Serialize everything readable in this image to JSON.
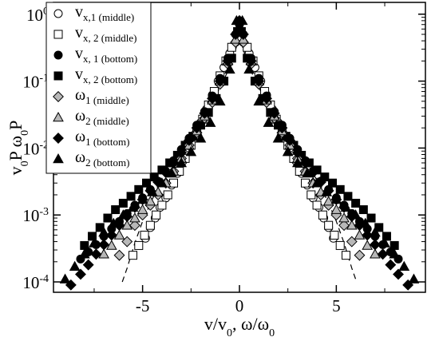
{
  "chart_data": {
    "type": "scatter",
    "yscale": "log",
    "xlim": [
      -9.6,
      9.6
    ],
    "ylim": [
      7e-05,
      1.5
    ],
    "x_ticks": [
      -5,
      0,
      5
    ],
    "x_tick_labels": [
      "-5",
      "0",
      "5"
    ],
    "y_ticks": [
      0.0001,
      0.001,
      0.01,
      0.1,
      1
    ],
    "y_tick_labels": [
      {
        "base": "10",
        "exp": "-4"
      },
      {
        "base": "10",
        "exp": "-3"
      },
      {
        "base": "10",
        "exp": "-2"
      },
      {
        "base": "10",
        "exp": "-1"
      },
      {
        "base": "10",
        "exp": "0"
      }
    ],
    "xlabel": {
      "parts": [
        {
          "text": "v/v",
          "sub": false
        },
        {
          "text": "0",
          "sub": true
        },
        {
          "text": ", ω/ω",
          "sub": false
        },
        {
          "text": "0",
          "sub": true
        }
      ]
    },
    "ylabel": {
      "parts": [
        {
          "text": "v",
          "sub": false
        },
        {
          "text": "0",
          "sub": true
        },
        {
          "text": "P    ω",
          "sub": false
        },
        {
          "text": "0",
          "sub": true
        },
        {
          "text": "P",
          "sub": false
        }
      ]
    },
    "legend_position": "top-left",
    "legend": [
      {
        "main": "v",
        "sub": "x,1 (middle)",
        "marker": "circle",
        "fill": "none"
      },
      {
        "main": "v",
        "sub": "x, 2 (middle)",
        "marker": "square",
        "fill": "none"
      },
      {
        "main": "v",
        "sub": "x, 1 (bottom)",
        "marker": "circle",
        "fill": "black"
      },
      {
        "main": "v",
        "sub": "x, 2 (bottom)",
        "marker": "square",
        "fill": "black"
      },
      {
        "main": "ω",
        "sub": "1 (middle)",
        "marker": "diamond",
        "fill": "gray"
      },
      {
        "main": "ω",
        "sub": "2 (middle)",
        "marker": "triangle",
        "fill": "gray"
      },
      {
        "main": "ω",
        "sub": "1 (bottom)",
        "marker": "diamond",
        "fill": "black"
      },
      {
        "main": "ω",
        "sub": "2 (bottom)",
        "marker": "triangle",
        "fill": "black"
      }
    ],
    "series": [
      {
        "marker": "circle",
        "fill": "none",
        "x": [
          -4.85,
          -4.6,
          -4.35,
          -4.1,
          -3.8,
          -3.5,
          -3.2,
          -2.9,
          -2.6,
          -2.3,
          -2.0,
          -1.7,
          -1.4,
          -1.1,
          -0.8,
          -0.5,
          -0.2,
          0.0,
          0.2,
          0.5,
          0.8,
          1.1,
          1.4,
          1.7,
          2.0,
          2.3,
          2.6,
          2.9,
          3.2,
          3.5,
          3.8,
          4.1,
          4.35,
          4.6,
          4.85
        ],
        "y": [
          0.00045,
          0.00065,
          0.0009,
          0.0013,
          0.0018,
          0.0028,
          0.0042,
          0.0065,
          0.01,
          0.015,
          0.024,
          0.038,
          0.062,
          0.1,
          0.16,
          0.26,
          0.38,
          0.42,
          0.38,
          0.26,
          0.16,
          0.1,
          0.062,
          0.038,
          0.024,
          0.015,
          0.01,
          0.0065,
          0.0042,
          0.0028,
          0.0018,
          0.0013,
          0.0009,
          0.00065,
          0.00045
        ]
      },
      {
        "marker": "square",
        "fill": "none",
        "x": [
          -5.5,
          -5.2,
          -4.9,
          -4.6,
          -4.3,
          -4.0,
          -3.7,
          -3.4,
          -3.1,
          -2.8,
          -2.5,
          -2.2,
          -1.9,
          -1.6,
          -1.3,
          -1.0,
          -0.7,
          -0.4,
          -0.1,
          0.1,
          0.4,
          0.7,
          1.0,
          1.3,
          1.6,
          1.9,
          2.2,
          2.5,
          2.8,
          3.1,
          3.4,
          3.7,
          4.0,
          4.3,
          4.6,
          4.9,
          5.2,
          5.5
        ],
        "y": [
          0.00025,
          0.00035,
          0.0005,
          0.0007,
          0.001,
          0.0014,
          0.002,
          0.003,
          0.0045,
          0.007,
          0.011,
          0.017,
          0.027,
          0.044,
          0.07,
          0.12,
          0.2,
          0.32,
          0.42,
          0.42,
          0.32,
          0.2,
          0.12,
          0.07,
          0.044,
          0.027,
          0.017,
          0.011,
          0.007,
          0.0045,
          0.003,
          0.002,
          0.0014,
          0.001,
          0.0007,
          0.0005,
          0.00035,
          0.00025
        ]
      },
      {
        "marker": "circle",
        "fill": "black",
        "x": [
          -8.2,
          -7.8,
          -7.4,
          -7.0,
          -6.6,
          -6.2,
          -5.8,
          -5.4,
          -5.0,
          -4.6,
          -4.2,
          -3.8,
          -3.4,
          -3.0,
          -2.6,
          -2.2,
          -1.8,
          -1.4,
          -1.0,
          -0.6,
          -0.2,
          0.0,
          0.2,
          0.6,
          1.0,
          1.4,
          1.8,
          2.2,
          2.6,
          3.0,
          3.4,
          3.8,
          4.2,
          4.6,
          5.0,
          5.4,
          5.8,
          6.2,
          6.6,
          7.0,
          7.4,
          7.8,
          8.2
        ],
        "y": [
          0.00022,
          0.00028,
          0.00036,
          0.00048,
          0.00062,
          0.0008,
          0.00105,
          0.0014,
          0.0018,
          0.0024,
          0.0032,
          0.0045,
          0.0065,
          0.0095,
          0.014,
          0.022,
          0.035,
          0.06,
          0.11,
          0.22,
          0.5,
          0.7,
          0.5,
          0.22,
          0.11,
          0.06,
          0.035,
          0.022,
          0.014,
          0.0095,
          0.0065,
          0.0045,
          0.0032,
          0.0024,
          0.0018,
          0.0014,
          0.00105,
          0.0008,
          0.00062,
          0.00048,
          0.00036,
          0.00028,
          0.00022
        ]
      },
      {
        "marker": "square",
        "fill": "black",
        "x": [
          -8.0,
          -7.6,
          -7.2,
          -6.8,
          -6.4,
          -6.0,
          -5.6,
          -5.2,
          -4.8,
          -4.4,
          -4.0,
          -3.6,
          -3.2,
          -2.8,
          -2.4,
          -2.0,
          -1.6,
          -1.2,
          -0.8,
          -0.4,
          -0.1,
          0.1,
          0.4,
          0.8,
          1.2,
          1.6,
          2.0,
          2.4,
          2.8,
          3.2,
          3.6,
          4.0,
          4.4,
          4.8,
          5.2,
          5.6,
          6.0,
          6.4,
          6.8,
          7.2,
          7.6,
          8.0
        ],
        "y": [
          0.00035,
          0.00048,
          0.00065,
          0.0009,
          0.0012,
          0.0015,
          0.0019,
          0.0024,
          0.003,
          0.0037,
          0.0047,
          0.006,
          0.0078,
          0.011,
          0.015,
          0.022,
          0.034,
          0.055,
          0.1,
          0.22,
          0.55,
          0.55,
          0.22,
          0.1,
          0.055,
          0.034,
          0.022,
          0.015,
          0.011,
          0.0078,
          0.006,
          0.0047,
          0.0037,
          0.003,
          0.0024,
          0.0019,
          0.0015,
          0.0012,
          0.0009,
          0.00065,
          0.00048,
          0.00035
        ]
      },
      {
        "marker": "diamond",
        "fill": "gray",
        "x": [
          -6.2,
          -5.8,
          -5.4,
          -5.0,
          -4.6,
          -4.2,
          -3.8,
          -3.4,
          -3.0,
          -2.6,
          -2.2,
          -1.8,
          -1.4,
          -1.0,
          -0.6,
          -0.2,
          0.2,
          0.6,
          1.0,
          1.4,
          1.8,
          2.2,
          2.6,
          3.0,
          3.4,
          3.8,
          4.2,
          4.6,
          5.0,
          5.4,
          5.8,
          6.2
        ],
        "y": [
          0.00025,
          0.0004,
          0.0007,
          0.001,
          0.0014,
          0.002,
          0.003,
          0.0045,
          0.007,
          0.011,
          0.017,
          0.028,
          0.048,
          0.09,
          0.18,
          0.38,
          0.38,
          0.18,
          0.09,
          0.048,
          0.028,
          0.017,
          0.011,
          0.007,
          0.0045,
          0.003,
          0.002,
          0.0014,
          0.001,
          0.0007,
          0.0004,
          0.00025
        ]
      },
      {
        "marker": "triangle",
        "fill": "gray",
        "x": [
          -7.0,
          -6.6,
          -6.2,
          -5.8,
          -5.4,
          -5.0,
          -4.6,
          -4.2,
          -3.8,
          -3.4,
          -3.0,
          -2.6,
          -2.2,
          -1.8,
          -1.4,
          -1.0,
          -0.6,
          -0.2,
          0.2,
          0.6,
          1.0,
          1.4,
          1.8,
          2.2,
          2.6,
          3.0,
          3.4,
          3.8,
          4.2,
          4.6,
          5.0,
          5.4,
          5.8,
          6.2,
          6.6,
          7.0
        ],
        "y": [
          0.00026,
          0.00035,
          0.0005,
          0.0007,
          0.0009,
          0.0012,
          0.0016,
          0.0022,
          0.003,
          0.0045,
          0.007,
          0.011,
          0.018,
          0.03,
          0.052,
          0.1,
          0.2,
          0.42,
          0.42,
          0.2,
          0.1,
          0.052,
          0.03,
          0.018,
          0.011,
          0.007,
          0.0045,
          0.003,
          0.0022,
          0.0016,
          0.0012,
          0.0009,
          0.0007,
          0.0005,
          0.00035,
          0.00026
        ]
      },
      {
        "marker": "diamond",
        "fill": "black",
        "x": [
          -8.7,
          -8.2,
          -7.8,
          -7.4,
          -7.0,
          -6.6,
          -6.2,
          -5.8,
          -5.4,
          -5.0,
          -4.6,
          -4.2,
          -3.8,
          -3.4,
          -3.0,
          -2.6,
          -2.2,
          -1.8,
          -1.4,
          -1.0,
          -0.6,
          -0.2,
          0.0,
          0.2,
          0.6,
          1.0,
          1.4,
          1.8,
          2.2,
          2.6,
          3.0,
          3.4,
          3.8,
          4.2,
          4.6,
          5.0,
          5.4,
          5.8,
          6.2,
          6.6,
          7.0,
          7.4,
          7.8,
          8.2,
          8.7
        ],
        "y": [
          9e-05,
          0.00013,
          0.00018,
          0.00026,
          0.00036,
          0.0005,
          0.0007,
          0.00095,
          0.0013,
          0.0017,
          0.0023,
          0.0031,
          0.0043,
          0.006,
          0.0085,
          0.013,
          0.02,
          0.033,
          0.055,
          0.1,
          0.2,
          0.5,
          0.8,
          0.5,
          0.2,
          0.1,
          0.055,
          0.033,
          0.02,
          0.013,
          0.0085,
          0.006,
          0.0043,
          0.0031,
          0.0023,
          0.0017,
          0.0013,
          0.00095,
          0.0007,
          0.0005,
          0.00036,
          0.00026,
          0.00018,
          0.00013,
          9e-05
        ]
      },
      {
        "marker": "triangle",
        "fill": "black",
        "x": [
          -9.0,
          -8.5,
          -8.0,
          -7.5,
          -7.0,
          -6.5,
          -6.0,
          -5.5,
          -5.0,
          -4.5,
          -4.0,
          -3.5,
          -3.0,
          -2.5,
          -2.0,
          -1.5,
          -1.0,
          -0.5,
          -0.15,
          0.15,
          0.5,
          1.0,
          1.5,
          2.0,
          2.5,
          3.0,
          3.5,
          4.0,
          4.5,
          5.0,
          5.5,
          6.0,
          6.5,
          7.0,
          7.5,
          8.0,
          8.5,
          9.0
        ],
        "y": [
          0.00011,
          0.00017,
          0.00026,
          0.00038,
          0.00055,
          0.00075,
          0.001,
          0.0013,
          0.0017,
          0.0022,
          0.003,
          0.0042,
          0.006,
          0.0088,
          0.014,
          0.024,
          0.05,
          0.15,
          0.8,
          0.8,
          0.15,
          0.05,
          0.024,
          0.014,
          0.0088,
          0.006,
          0.0042,
          0.003,
          0.0022,
          0.0017,
          0.0013,
          0.001,
          0.00075,
          0.00055,
          0.00038,
          0.00026,
          0.00017,
          0.00011
        ]
      }
    ],
    "fit_curves": [
      {
        "style": "dashed",
        "x": [
          -6.05,
          -5.8,
          -5.4,
          -5.0,
          -4.6,
          -4.2,
          -3.8,
          -3.4,
          -3.0,
          -2.6,
          -2.2,
          -1.8,
          -1.4,
          -1.0,
          -0.6,
          -0.3,
          0.0,
          0.3,
          0.6,
          1.0,
          1.4,
          1.8,
          2.2,
          2.6,
          3.0,
          3.4,
          3.8,
          4.2,
          4.6,
          5.0,
          5.4,
          5.8,
          6.05
        ],
        "y": [
          0.0001,
          0.00016,
          0.00038,
          0.0008,
          0.0015,
          0.0026,
          0.0042,
          0.0065,
          0.0098,
          0.015,
          0.022,
          0.033,
          0.05,
          0.08,
          0.14,
          0.24,
          0.45,
          0.24,
          0.14,
          0.08,
          0.05,
          0.033,
          0.022,
          0.015,
          0.0098,
          0.0065,
          0.0042,
          0.0026,
          0.0015,
          0.0008,
          0.00038,
          0.00016,
          0.0001
        ]
      }
    ]
  }
}
